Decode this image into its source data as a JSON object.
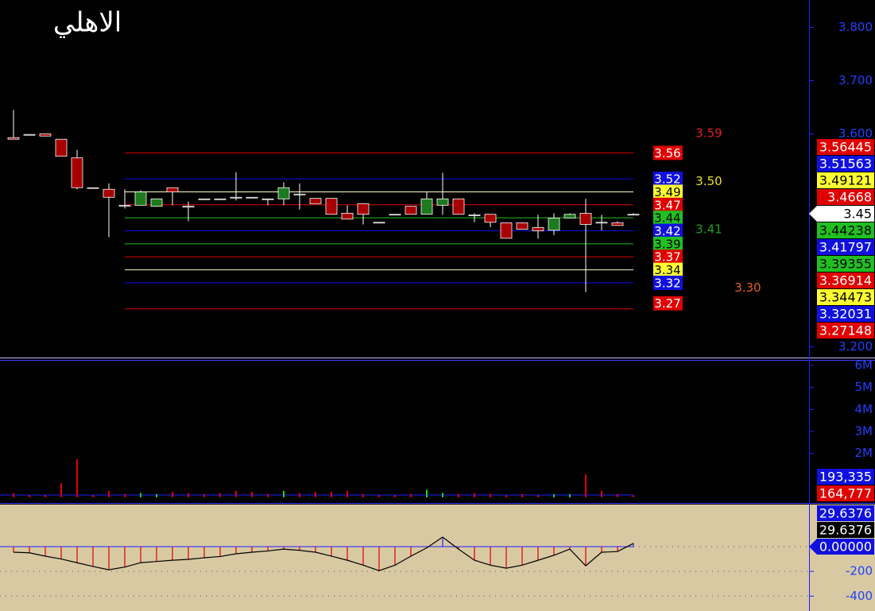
{
  "chart_data": [
    {
      "type": "candlestick",
      "title": "الاهلي",
      "open": [
        3.593,
        3.599,
        3.6,
        3.59,
        3.555,
        3.499,
        3.496,
        3.466,
        3.466,
        3.464,
        3.499,
        3.464,
        3.478,
        3.478,
        3.481,
        3.481,
        3.478,
        3.478,
        3.487,
        3.479,
        3.479,
        3.451,
        3.469,
        3.434,
        3.449,
        3.464,
        3.449,
        3.466,
        3.478,
        3.448,
        3.449,
        3.433,
        3.433,
        3.424,
        3.419,
        3.442,
        3.451,
        3.434,
        3.433,
        3.449
      ],
      "high": [
        3.645,
        3.599,
        3.6,
        3.59,
        3.57,
        3.499,
        3.507,
        3.496,
        3.494,
        3.478,
        3.499,
        3.473,
        3.478,
        3.478,
        3.528,
        3.481,
        3.478,
        3.509,
        3.507,
        3.479,
        3.479,
        3.466,
        3.469,
        3.434,
        3.449,
        3.464,
        3.491,
        3.527,
        3.478,
        3.451,
        3.449,
        3.433,
        3.433,
        3.448,
        3.451,
        3.451,
        3.478,
        3.448,
        3.436,
        3.451
      ],
      "low": [
        3.59,
        3.599,
        3.596,
        3.558,
        3.496,
        3.499,
        3.406,
        3.46,
        3.466,
        3.464,
        3.466,
        3.436,
        3.478,
        3.478,
        3.475,
        3.481,
        3.466,
        3.466,
        3.458,
        3.469,
        3.449,
        3.44,
        3.43,
        3.434,
        3.449,
        3.449,
        3.449,
        3.448,
        3.449,
        3.434,
        3.425,
        3.404,
        3.421,
        3.403,
        3.41,
        3.442,
        3.303,
        3.419,
        3.428,
        3.449
      ],
      "close": [
        3.59,
        3.599,
        3.596,
        3.558,
        3.499,
        3.499,
        3.481,
        3.466,
        3.491,
        3.478,
        3.491,
        3.464,
        3.478,
        3.478,
        3.481,
        3.481,
        3.478,
        3.499,
        3.487,
        3.469,
        3.449,
        3.44,
        3.449,
        3.434,
        3.449,
        3.449,
        3.478,
        3.478,
        3.449,
        3.448,
        3.434,
        3.404,
        3.421,
        3.418,
        3.442,
        3.449,
        3.43,
        3.434,
        3.428,
        3.449
      ],
      "up_color": "#1e7a1e",
      "down_color": "#a80000",
      "ylim": [
        3.18,
        3.85
      ],
      "yticks": [
        {
          "value": 3.8,
          "label": "3.800"
        },
        {
          "value": 3.7,
          "label": "3.700"
        },
        {
          "value": 3.6,
          "label": "3.600"
        },
        {
          "value": 3.2,
          "label": "3.200"
        }
      ],
      "levels": [
        {
          "value": 3.56445,
          "label": "3.56",
          "color": "#e00000"
        },
        {
          "value": 3.51563,
          "label": "3.52",
          "color": "#1010e0"
        },
        {
          "value": 3.49121,
          "label": "3.49",
          "color": "#ffff30"
        },
        {
          "value": 3.4668,
          "label": "3.47",
          "color": "#e00000"
        },
        {
          "value": 3.44238,
          "label": "3.44",
          "color": "#20c020"
        },
        {
          "value": 3.41797,
          "label": "3.42",
          "color": "#1010e0"
        },
        {
          "value": 3.39355,
          "label": "3.39",
          "color": "#20c020"
        },
        {
          "value": 3.36914,
          "label": "3.37",
          "color": "#e00000"
        },
        {
          "value": 3.34473,
          "label": "3.34",
          "color": "#ffff30"
        },
        {
          "value": 3.32031,
          "label": "3.32",
          "color": "#1010e0"
        },
        {
          "value": 3.27148,
          "label": "3.27",
          "color": "#e00000"
        }
      ],
      "last": 3.45,
      "annotations": [
        {
          "value": 3.59,
          "label": "3.59",
          "color": "#e02020"
        },
        {
          "value": 3.5,
          "label": "3.50",
          "color": "#e8e020"
        },
        {
          "value": 3.41,
          "label": "3.41",
          "color": "#20a020"
        },
        {
          "value": 3.3,
          "label": "3.30",
          "color": "#e06020"
        }
      ]
    },
    {
      "type": "volume",
      "values": [
        200000,
        100000,
        100000,
        650000,
        1740000,
        100000,
        300000,
        150000,
        200000,
        150000,
        250000,
        200000,
        150000,
        200000,
        300000,
        250000,
        150000,
        300000,
        200000,
        250000,
        250000,
        300000,
        150000,
        100000,
        100000,
        150000,
        350000,
        200000,
        150000,
        200000,
        150000,
        100000,
        150000,
        100000,
        150000,
        150000,
        1050000,
        300000,
        150000,
        100000
      ],
      "ylim": [
        0,
        6000000
      ],
      "yticks": [
        {
          "value": 6000000,
          "label": "6M"
        },
        {
          "value": 5000000,
          "label": "5M"
        },
        {
          "value": 4000000,
          "label": "4M"
        },
        {
          "value": 3000000,
          "label": "3M"
        },
        {
          "value": 2000000,
          "label": "2M"
        }
      ],
      "tags": [
        {
          "value": 193335,
          "label": "193,335",
          "color": "#1010e0"
        },
        {
          "value": 164777,
          "label": "164,777",
          "color": "#e00000"
        }
      ]
    },
    {
      "type": "oscillator",
      "values": [
        -45,
        -50,
        -77,
        -100,
        -130,
        -160,
        -187,
        -165,
        -130,
        -120,
        -110,
        -103,
        -90,
        -80,
        -58,
        -45,
        -35,
        -20,
        -30,
        -45,
        -77,
        -110,
        -150,
        -194,
        -150,
        -77,
        -10,
        77,
        -20,
        -110,
        -150,
        -174,
        -150,
        -110,
        -70,
        -20,
        -155,
        -45,
        -40,
        26
      ],
      "ylim": [
        -520,
        340
      ],
      "yticks": [
        {
          "value": -200,
          "label": "-200"
        },
        {
          "value": -400,
          "label": "-400"
        }
      ],
      "tags": [
        {
          "value": 29.6376,
          "color": "#1010e0"
        },
        {
          "value": 29.6376,
          "color": "#000000"
        },
        {
          "value": 0,
          "label": "0.00000",
          "color": "#1010e0"
        }
      ]
    }
  ]
}
